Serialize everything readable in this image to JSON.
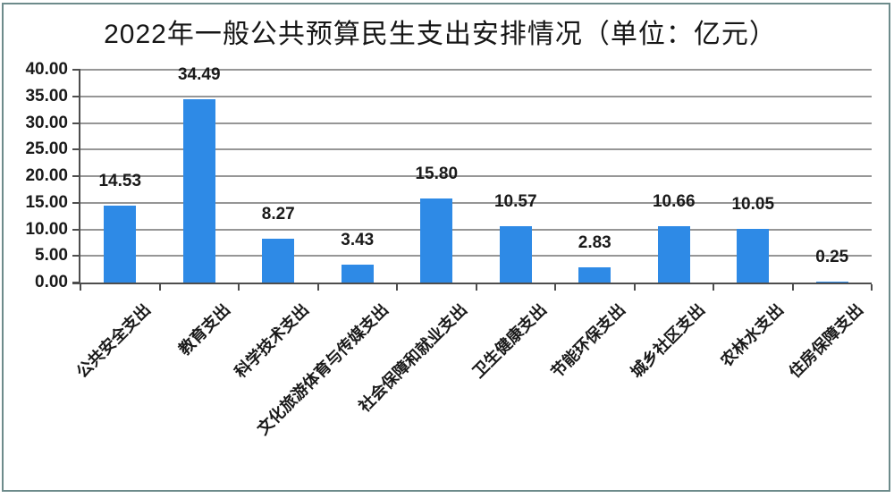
{
  "chart_data": {
    "type": "bar",
    "title": "2022年一般公共预算民生支出安排情况（单位：亿元）",
    "unit_label": "亿元",
    "categories": [
      "公共安全支出",
      "教育支出",
      "科学技术支出",
      "文化旅游体育与传媒支出",
      "社会保障和就业支出",
      "卫生健康支出",
      "节能环保支出",
      "城乡社区支出",
      "农林水支出",
      "住房保障支出"
    ],
    "values": [
      14.53,
      34.49,
      8.27,
      3.43,
      15.8,
      10.57,
      2.83,
      10.66,
      10.05,
      0.25
    ],
    "value_labels": [
      "14.53",
      "34.49",
      "8.27",
      "3.43",
      "15.80",
      "10.57",
      "2.83",
      "10.66",
      "10.05",
      "0.25"
    ],
    "xlabel": "",
    "ylabel": "",
    "ylim": [
      0,
      40
    ],
    "ytick_step": 5,
    "ytick_labels": [
      "0.00",
      "5.00",
      "10.00",
      "15.00",
      "20.00",
      "25.00",
      "30.00",
      "35.00",
      "40.00"
    ],
    "grid": true,
    "legend_position": "none",
    "category_label_rotation_deg": 45,
    "colors": {
      "bar": "#2e8ae6",
      "grid": "#969696",
      "axis": "#4d4d4d",
      "text": "#1a1a1a",
      "frame_border": "#6d8b8b",
      "background": "#ffffff"
    }
  }
}
